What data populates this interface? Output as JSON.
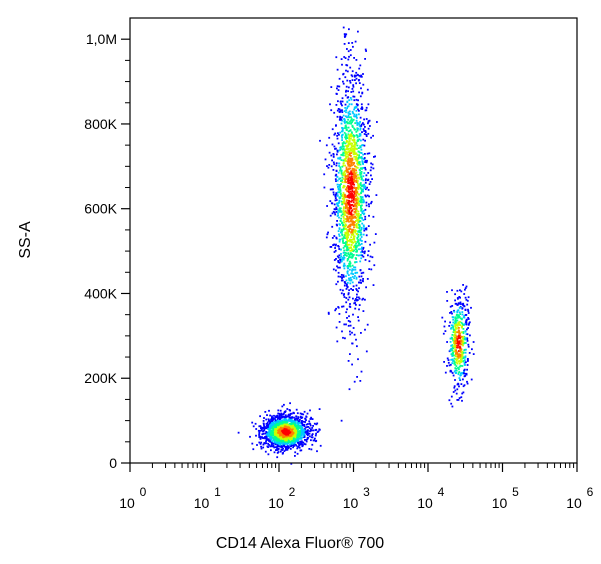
{
  "chart_data": {
    "type": "scatter",
    "xlabel": "CD14 Alexa Fluor® 700",
    "ylabel": "SS-A",
    "x_scale": "log",
    "xlim": [
      1,
      1000000
    ],
    "ylim": [
      0,
      1050000
    ],
    "x_ticks": [
      {
        "base": "10",
        "exp": "0"
      },
      {
        "base": "10",
        "exp": "1"
      },
      {
        "base": "10",
        "exp": "2"
      },
      {
        "base": "10",
        "exp": "3"
      },
      {
        "base": "10",
        "exp": "4"
      },
      {
        "base": "10",
        "exp": "5"
      },
      {
        "base": "10",
        "exp": "6"
      }
    ],
    "y_ticks": [
      {
        "label": "0",
        "value": 0
      },
      {
        "label": "200K",
        "value": 200000
      },
      {
        "label": "400K",
        "value": 400000
      },
      {
        "label": "600K",
        "value": 600000
      },
      {
        "label": "800K",
        "value": 800000
      },
      {
        "label": "1,0M",
        "value": 1000000
      }
    ],
    "grid": false,
    "density_colors": [
      "#0000ff",
      "#00c8ff",
      "#00ff90",
      "#c8ff00",
      "#ff8000",
      "#ff0000"
    ],
    "populations": [
      {
        "x": 120,
        "y": 75000,
        "x_spread_decades": 0.16,
        "y_spread": 20000,
        "count": 1500
      },
      {
        "x": 900,
        "y": 640000,
        "x_spread_decades": 0.12,
        "y_spread": 140000,
        "count": 1800
      },
      {
        "x": 25000,
        "y": 285000,
        "x_spread_decades": 0.07,
        "y_spread": 55000,
        "count": 500
      }
    ]
  }
}
